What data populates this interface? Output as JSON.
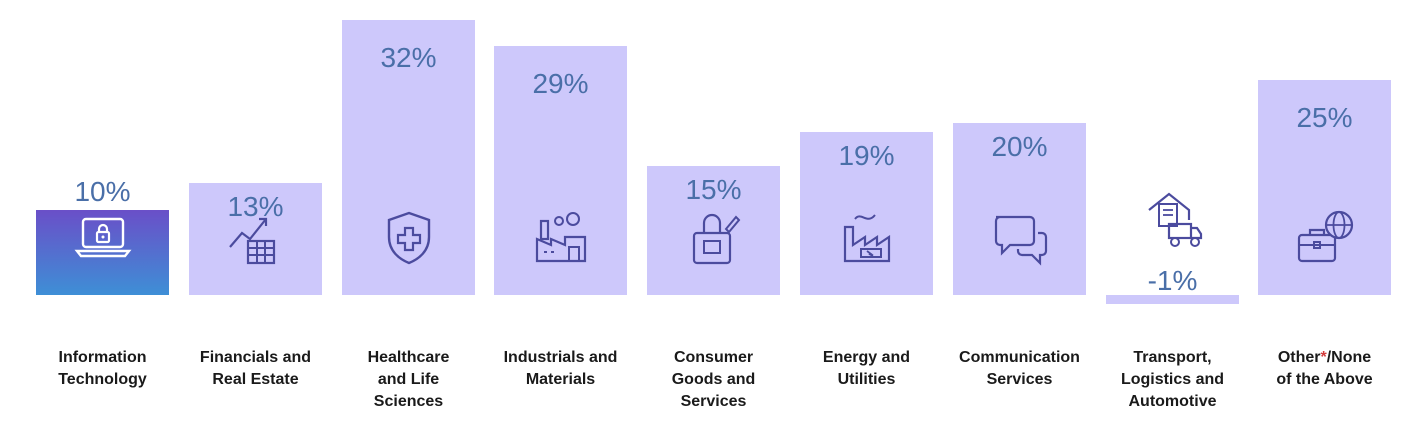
{
  "chart_data": {
    "type": "bar",
    "categories": [
      "Information\nTechnology",
      "Financials and\nReal Estate",
      "Healthcare\nand Life\nSciences",
      "Industrials and\nMaterials",
      "Consumer\nGoods and\nServices",
      "Energy and\nUtilities",
      "Communication\nServices",
      "Transport,\nLogistics and\nAutomotive",
      "Other*/None\nof the Above"
    ],
    "values": [
      10,
      13,
      32,
      29,
      15,
      19,
      20,
      -1,
      25
    ],
    "value_labels": [
      "10%",
      "13%",
      "32%",
      "29%",
      "15%",
      "19%",
      "20%",
      "-1%",
      "25%"
    ],
    "icons": [
      "laptop-lock-icon",
      "growth-chart-icon",
      "medical-shield-icon",
      "factory-icon",
      "shopping-bag-icon",
      "energy-factory-icon",
      "chat-bubbles-icon",
      "delivery-truck-icon",
      "briefcase-globe-icon"
    ],
    "colors": {
      "bar": "#cdc8fb",
      "highlight_top": "#6a4fc8",
      "highlight_bottom": "#3e8fd6",
      "value_text": "#4a6fa8",
      "icon": "#4b4b9e",
      "asterisk": "#d23c3c"
    }
  }
}
